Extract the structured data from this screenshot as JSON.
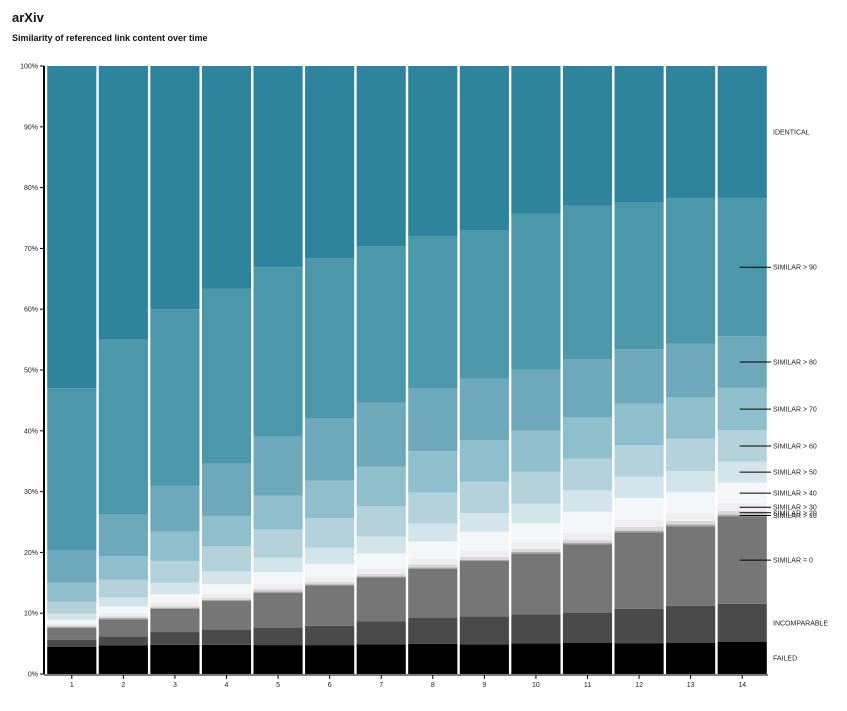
{
  "header": {
    "title": "arXiv",
    "subtitle": "Similarity of referenced link content over time"
  },
  "chart_data": {
    "type": "bar",
    "stacked": "percent",
    "categories": [
      "1",
      "2",
      "3",
      "4",
      "5",
      "6",
      "7",
      "8",
      "9",
      "10",
      "11",
      "12",
      "13",
      "14"
    ],
    "ylim": [
      0,
      100
    ],
    "y_ticks": [
      "0%",
      "10%",
      "20%",
      "30%",
      "40%",
      "50%",
      "60%",
      "70%",
      "80%",
      "90%",
      "100%"
    ],
    "legend_position": "right",
    "series": [
      {
        "name": "FAILED",
        "color": "#000000",
        "values": [
          4.5,
          4.7,
          4.8,
          4.8,
          4.8,
          4.8,
          4.9,
          5.0,
          4.9,
          5.1,
          5.1,
          5.1,
          5.1,
          5.2
        ]
      },
      {
        "name": "INCOMPARABLE",
        "color": "#4a4a4a",
        "values": [
          1.1,
          1.5,
          2.1,
          2.5,
          2.9,
          3.2,
          3.8,
          4.3,
          4.7,
          4.8,
          5.0,
          5.7,
          6.1,
          6.2
        ]
      },
      {
        "name": "SIMILAR = 0",
        "color": "#767676",
        "values": [
          2.0,
          2.8,
          3.8,
          4.7,
          5.8,
          6.7,
          7.3,
          8.2,
          9.2,
          10.1,
          11.2,
          12.6,
          13.1,
          14.2
        ]
      },
      {
        "name": "SIMILAR > 10",
        "color": "#a7a7a7",
        "values": [
          0.2,
          0.2,
          0.2,
          0.2,
          0.2,
          0.2,
          0.2,
          0.2,
          0.2,
          0.3,
          0.3,
          0.3,
          0.3,
          0.3
        ]
      },
      {
        "name": "SIMILAR > 20",
        "color": "#d9d9d9",
        "values": [
          0.2,
          0.3,
          0.3,
          0.3,
          0.4,
          0.4,
          0.4,
          0.5,
          0.5,
          0.5,
          0.5,
          0.6,
          0.6,
          0.6
        ]
      },
      {
        "name": "SIMILAR > 30",
        "color": "#eeeeee",
        "values": [
          0.3,
          0.5,
          0.6,
          0.7,
          0.8,
          0.8,
          0.9,
          1.0,
          1.1,
          1.1,
          1.2,
          1.2,
          1.2,
          1.2
        ]
      },
      {
        "name": "SIMILAR > 40",
        "color": "#f3f7f9",
        "values": [
          0.6,
          1.1,
          1.3,
          1.6,
          2.0,
          2.2,
          2.5,
          2.8,
          3.1,
          3.2,
          3.4,
          3.6,
          3.5,
          3.4
        ]
      },
      {
        "name": "SIMILAR > 50",
        "color": "#d3e4ea",
        "values": [
          1.0,
          1.5,
          1.9,
          2.1,
          2.4,
          2.7,
          2.8,
          3.0,
          3.1,
          3.2,
          3.5,
          3.5,
          3.5,
          3.4
        ]
      },
      {
        "name": "SIMILAR > 60",
        "color": "#b3d2dc",
        "values": [
          2.0,
          2.9,
          3.6,
          4.1,
          4.7,
          4.9,
          5.0,
          5.1,
          5.2,
          5.3,
          5.2,
          5.2,
          5.3,
          5.1
        ]
      },
      {
        "name": "SIMILAR > 70",
        "color": "#8fbfcd",
        "values": [
          3.1,
          3.9,
          4.8,
          5.0,
          5.6,
          6.2,
          6.6,
          6.9,
          6.9,
          6.8,
          6.8,
          6.9,
          6.8,
          6.9
        ]
      },
      {
        "name": "SIMILAR > 80",
        "color": "#6da9ba",
        "values": [
          5.3,
          6.8,
          7.6,
          8.6,
          9.8,
          10.3,
          10.6,
          10.5,
          10.3,
          10.2,
          9.6,
          9.0,
          8.8,
          8.4
        ]
      },
      {
        "name": "SIMILAR > 90",
        "color": "#4d97aa",
        "values": [
          26.7,
          28.8,
          29.0,
          28.8,
          28.1,
          26.7,
          25.9,
          25.2,
          24.7,
          25.9,
          25.2,
          24.2,
          24.0,
          22.4
        ]
      },
      {
        "name": "IDENTICAL",
        "color": "#2e849c",
        "values": [
          53.0,
          45.0,
          40.0,
          36.6,
          33.4,
          31.9,
          29.9,
          28.3,
          27.3,
          24.5,
          23.0,
          22.6,
          21.7,
          21.5
        ]
      }
    ]
  }
}
